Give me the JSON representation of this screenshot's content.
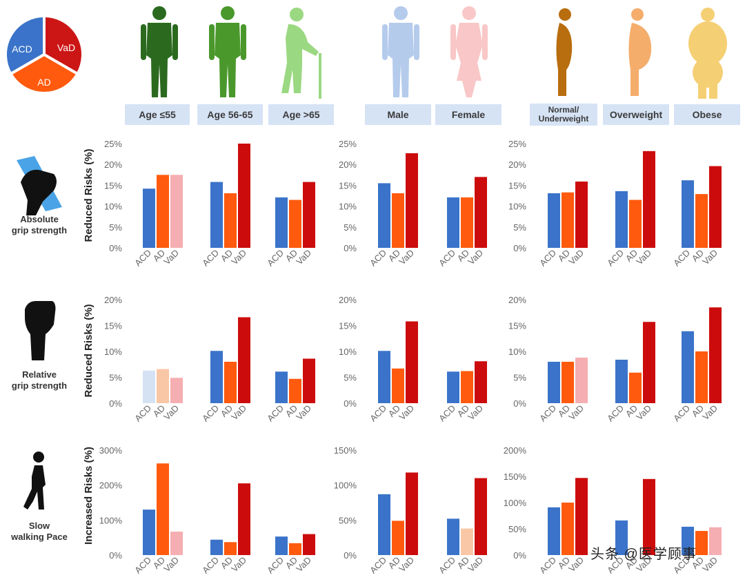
{
  "legend_pie": {
    "slices": [
      {
        "label": "ACD",
        "color": "#3a73c9"
      },
      {
        "label": "VaD",
        "color": "#cc1616"
      },
      {
        "label": "AD",
        "color": "#ff5a0e"
      }
    ]
  },
  "groups": [
    {
      "label": "Age ≤55",
      "color": "#2b6a1e",
      "shape": "adult"
    },
    {
      "label": "Age 56-65",
      "color": "#4a982c",
      "shape": "adult"
    },
    {
      "label": "Age >65",
      "color": "#9bd882",
      "shape": "elderly"
    },
    {
      "label": "Male",
      "color": "#b4cbec",
      "shape": "adult"
    },
    {
      "label": "Female",
      "color": "#f9c7c7",
      "shape": "female"
    },
    {
      "label": "Normal/\nUnderweight",
      "color": "#b86d0e",
      "shape": "side-slim"
    },
    {
      "label": "Overweight",
      "color": "#f5ad6c",
      "shape": "side-over"
    },
    {
      "label": "Obese",
      "color": "#f5cf73",
      "shape": "obese"
    }
  ],
  "metrics": [
    {
      "label": "Absolute\ngrip strength",
      "icon": "grip-hand-icon"
    },
    {
      "label": "Relative\ngrip strength",
      "icon": "raised-fist-icon"
    },
    {
      "label": "Slow\nwalking Pace",
      "icon": "walking-person-icon"
    }
  ],
  "colors": {
    "ACD": "#3a73c9",
    "AD": "#ff5a0e",
    "VaD": "#cc0c0c",
    "ACD_faded": "#d4e2f3",
    "AD_faded": "#fac7a6",
    "VaD_faded": "#f5aeb1",
    "tick": "#666666"
  },
  "watermark": "头条 @医学顾事",
  "chart_data": {
    "type": "bar",
    "categories": [
      "ACD",
      "AD",
      "VaD"
    ],
    "rows": [
      {
        "ylabel": "Reduced Risks (%)",
        "panels": [
          {
            "ylim": [
              0,
              25
            ],
            "ticks": [
              "0%",
              "5%",
              "10%",
              "15%",
              "20%",
              "25%"
            ],
            "groups": [
              {
                "group": "Age ≤55",
                "values": [
                  14.2,
                  17.5,
                  17.5
                ],
                "significant": [
                  true,
                  true,
                  false
                ]
              },
              {
                "group": "Age 56-65",
                "values": [
                  15.8,
                  13.1,
                  25.0
                ],
                "significant": [
                  true,
                  true,
                  true
                ]
              },
              {
                "group": "Age >65",
                "values": [
                  12.1,
                  11.5,
                  15.8
                ],
                "significant": [
                  true,
                  true,
                  true
                ]
              }
            ]
          },
          {
            "ylim": [
              0,
              25
            ],
            "ticks": [
              "0%",
              "5%",
              "10%",
              "15%",
              "20%",
              "25%"
            ],
            "groups": [
              {
                "group": "Male",
                "values": [
                  15.5,
                  13.1,
                  22.7
                ],
                "significant": [
                  true,
                  true,
                  true
                ]
              },
              {
                "group": "Female",
                "values": [
                  12.1,
                  12.1,
                  17.0
                ],
                "significant": [
                  true,
                  true,
                  true
                ]
              }
            ]
          },
          {
            "ylim": [
              0,
              25
            ],
            "ticks": [
              "0%",
              "5%",
              "10%",
              "15%",
              "20%",
              "25%"
            ],
            "groups": [
              {
                "group": "Normal/Underweight",
                "values": [
                  13.1,
                  13.3,
                  15.9
                ],
                "significant": [
                  true,
                  true,
                  true
                ]
              },
              {
                "group": "Overweight",
                "values": [
                  13.6,
                  11.5,
                  23.2
                ],
                "significant": [
                  true,
                  true,
                  true
                ]
              },
              {
                "group": "Obese",
                "values": [
                  16.2,
                  12.9,
                  19.6
                ],
                "significant": [
                  true,
                  true,
                  true
                ]
              }
            ]
          }
        ]
      },
      {
        "ylabel": "Reduced Risks (%)",
        "panels": [
          {
            "ylim": [
              0,
              20
            ],
            "ticks": [
              "0%",
              "5%",
              "10%",
              "15%",
              "20%"
            ],
            "groups": [
              {
                "group": "Age ≤55",
                "values": [
                  6.3,
                  6.6,
                  4.9
                ],
                "significant": [
                  false,
                  false,
                  false
                ]
              },
              {
                "group": "Age 56-65",
                "values": [
                  10.1,
                  8.0,
                  16.6
                ],
                "significant": [
                  true,
                  true,
                  true
                ]
              },
              {
                "group": "Age >65",
                "values": [
                  6.1,
                  4.7,
                  8.6
                ],
                "significant": [
                  true,
                  true,
                  true
                ]
              }
            ]
          },
          {
            "ylim": [
              0,
              20
            ],
            "ticks": [
              "0%",
              "5%",
              "10%",
              "15%",
              "20%"
            ],
            "groups": [
              {
                "group": "Male",
                "values": [
                  10.1,
                  6.7,
                  15.8
                ],
                "significant": [
                  true,
                  true,
                  true
                ]
              },
              {
                "group": "Female",
                "values": [
                  6.1,
                  6.2,
                  8.1
                ],
                "significant": [
                  true,
                  true,
                  true
                ]
              }
            ]
          },
          {
            "ylim": [
              0,
              20
            ],
            "ticks": [
              "0%",
              "5%",
              "10%",
              "15%",
              "20%"
            ],
            "groups": [
              {
                "group": "Normal/Underweight",
                "values": [
                  8.0,
                  8.0,
                  8.8
                ],
                "significant": [
                  true,
                  true,
                  false
                ]
              },
              {
                "group": "Overweight",
                "values": [
                  8.4,
                  5.9,
                  15.7
                ],
                "significant": [
                  true,
                  true,
                  true
                ]
              },
              {
                "group": "Obese",
                "values": [
                  13.9,
                  10.0,
                  18.5
                ],
                "significant": [
                  true,
                  true,
                  true
                ]
              }
            ]
          }
        ]
      },
      {
        "ylabel": "Increased  Risks (%)",
        "panels": [
          {
            "ylim": [
              0,
              300
            ],
            "ticks": [
              "0%",
              "100%",
              "200%",
              "300%"
            ],
            "groups": [
              {
                "group": "Age ≤55",
                "values": [
                  130,
                  262,
                  67
                ],
                "significant": [
                  true,
                  true,
                  false
                ]
              },
              {
                "group": "Age 56-65",
                "values": [
                  44,
                  37,
                  205
                ],
                "significant": [
                  true,
                  true,
                  true
                ]
              },
              {
                "group": "Age >65",
                "values": [
                  53,
                  34,
                  60
                ],
                "significant": [
                  true,
                  true,
                  true
                ]
              }
            ]
          },
          {
            "ylim": [
              0,
              150
            ],
            "ticks": [
              "0%",
              "50%",
              "100%",
              "150%"
            ],
            "groups": [
              {
                "group": "Male",
                "values": [
                  87,
                  49,
                  118
                ],
                "significant": [
                  true,
                  true,
                  true
                ]
              },
              {
                "group": "Female",
                "values": [
                  52,
                  38,
                  110
                ],
                "significant": [
                  true,
                  false,
                  true
                ]
              }
            ]
          },
          {
            "ylim": [
              0,
              200
            ],
            "ticks": [
              "0%",
              "50%",
              "100%",
              "150%",
              "200%"
            ],
            "groups": [
              {
                "group": "Normal/Underweight",
                "values": [
                  91,
                  100,
                  147
                ],
                "significant": [
                  true,
                  true,
                  true
                ]
              },
              {
                "group": "Overweight",
                "values": [
                  66,
                  0,
                  145
                ],
                "significant": [
                  true,
                  true,
                  true
                ]
              },
              {
                "group": "Obese",
                "values": [
                  54,
                  46,
                  53
                ],
                "significant": [
                  true,
                  true,
                  false
                ]
              }
            ]
          }
        ]
      }
    ]
  }
}
